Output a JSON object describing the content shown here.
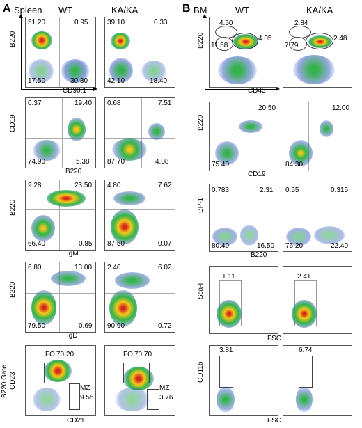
{
  "panelA": {
    "letter": "A",
    "tissue": "Spleen",
    "col_wt": "WT",
    "col_ka": "KA/KA",
    "rows": [
      {
        "xlab": "CD90.1",
        "ylab": "B220",
        "wt": [
          "51.20",
          "0.95",
          "17.50",
          "30.30"
        ],
        "ka": [
          "39.10",
          "0.33",
          "42.10",
          "18.40"
        ]
      },
      {
        "xlab": "B220",
        "ylab": "CD19",
        "wt": [
          "0.37",
          "19.40",
          "74.90",
          "5.38"
        ],
        "ka": [
          "0.68",
          "7.51",
          "87.70",
          "4.08"
        ]
      },
      {
        "xlab": "IgM",
        "ylab": "B220",
        "wt": [
          "9.28",
          "23.50",
          "66.40",
          "0.85"
        ],
        "ka": [
          "4.80",
          "7.62",
          "87.50",
          "0.07"
        ]
      },
      {
        "xlab": "IgD",
        "ylab": "B220",
        "wt": [
          "6.80",
          "13.00",
          "79.50",
          "0.69"
        ],
        "ka": [
          "2.40",
          "6.02",
          "90.90",
          "0.72"
        ]
      },
      {
        "xlab": "CD21",
        "ylab": "CD23",
        "ylab2": "B220 Gate",
        "wt_fo_label": "FO",
        "wt_fo": "70.20",
        "wt_mz_label": "MZ",
        "wt_mz": "9.55",
        "ka_fo_label": "FO",
        "ka_fo": "70.70",
        "ka_mz_label": "MZ",
        "ka_mz": "3.76"
      }
    ]
  },
  "panelB": {
    "letter": "B",
    "tissue": "BM",
    "col_wt": "WT",
    "col_ka": "KA/KA",
    "rows": [
      {
        "xlab": "CD43",
        "ylab": "B220",
        "wt": [
          "4.50",
          "4.05",
          "11.58"
        ],
        "ka": [
          "2.84",
          "2.48",
          "7.79"
        ]
      },
      {
        "xlab": "CD19",
        "ylab": "B220",
        "wt": [
          "20.50",
          "75.40"
        ],
        "ka": [
          "12.00",
          "84.30"
        ]
      },
      {
        "xlab": "B220",
        "ylab": "BP-1",
        "wt": [
          "0.783",
          "2.31",
          "80.40",
          "16.50"
        ],
        "ka": [
          "0.55",
          "0.315",
          "76.20",
          "22.40"
        ]
      },
      {
        "xlab": "FSC",
        "ylab": "Sca-I",
        "wt": [
          "1.11"
        ],
        "ka": [
          "2.41"
        ]
      },
      {
        "xlab": "FSC",
        "ylab": "CD11b",
        "wt": [
          "3.81"
        ],
        "ka": [
          "6.74"
        ]
      }
    ]
  },
  "colors": {
    "high": "#d7261e",
    "mid": "#f2c81b",
    "low": "#33b34a",
    "sparse": "#2a52be"
  }
}
